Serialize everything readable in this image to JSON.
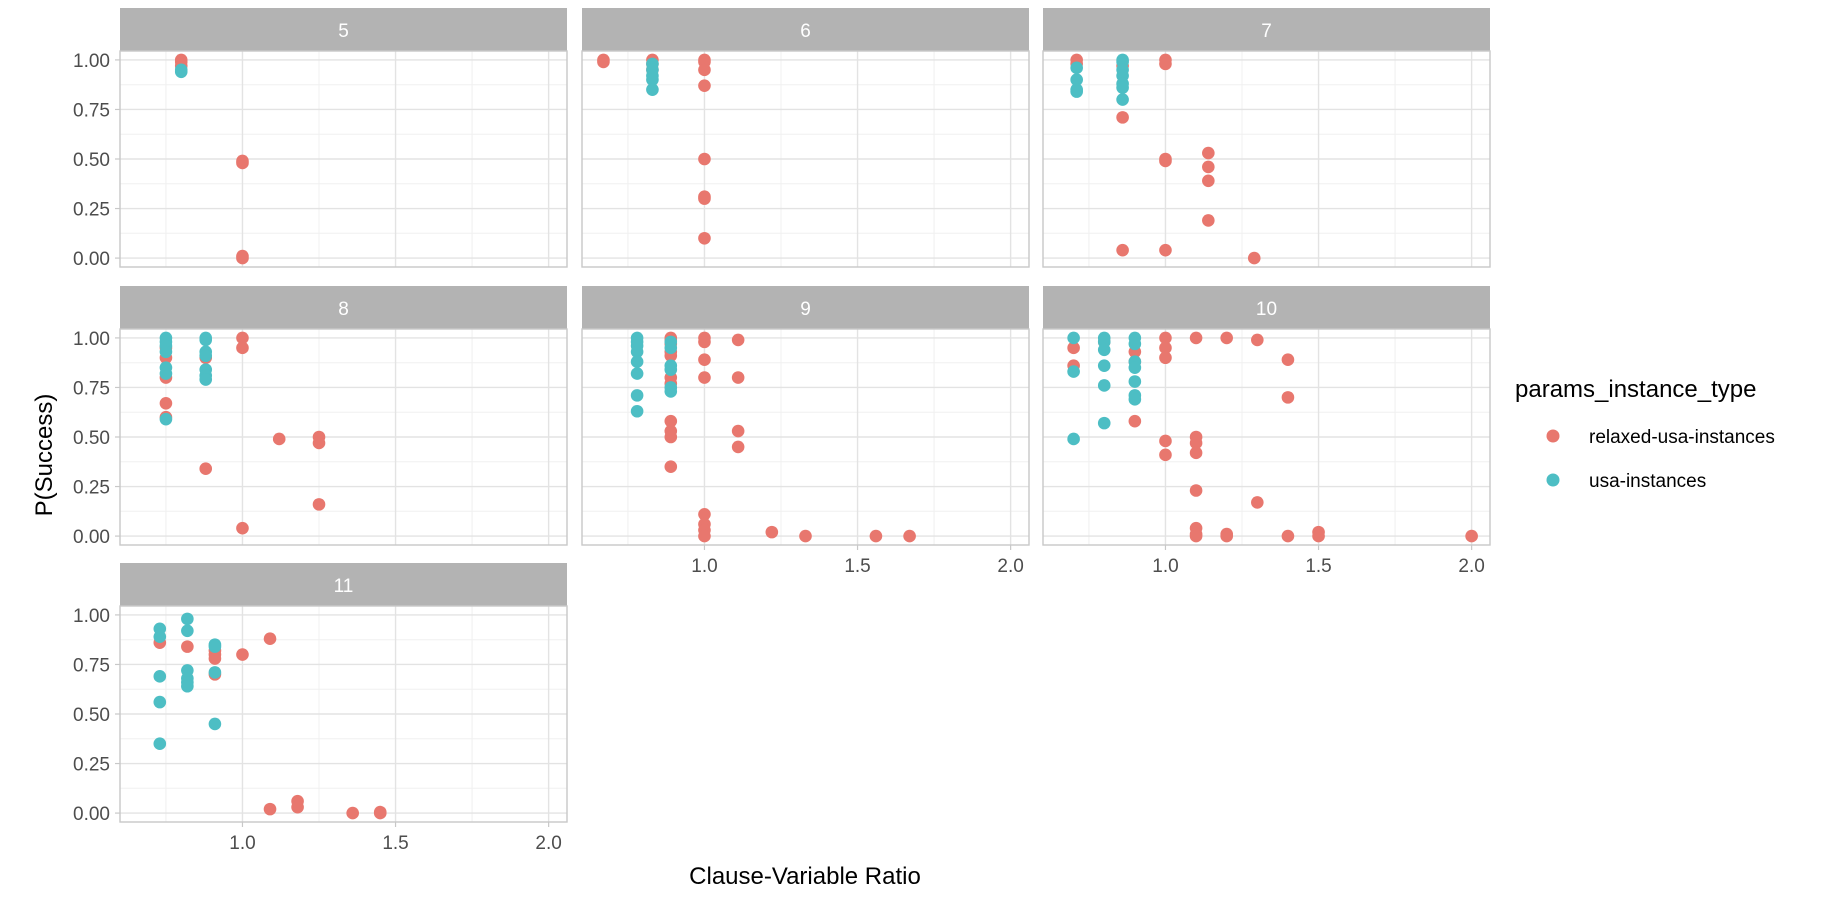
{
  "chart_data": {
    "type": "scatter",
    "facet_by": "panel",
    "xlabel": "Clause-Variable Ratio",
    "ylabel": "P(Success)",
    "x_ticks": [
      "1.0",
      "1.5",
      "2.0"
    ],
    "y_ticks": [
      "0.00",
      "0.25",
      "0.50",
      "0.75",
      "1.00"
    ],
    "xlim": [
      0.6,
      2.06
    ],
    "ylim": [
      -0.045,
      1.045
    ],
    "legend": {
      "title": "params_instance_type",
      "position": "right",
      "entries": [
        {
          "label": "relaxed-usa-instances",
          "color": "#E8776E"
        },
        {
          "label": "usa-instances",
          "color": "#4DBEC4"
        }
      ]
    },
    "panels": [
      {
        "label": "5",
        "series": [
          {
            "name": "relaxed-usa-instances",
            "x": [
              0.8,
              0.8,
              0.8,
              1.0,
              1.0,
              1.0,
              1.0
            ],
            "y": [
              1.0,
              0.99,
              0.97,
              0.49,
              0.48,
              0.01,
              0.0
            ]
          },
          {
            "name": "usa-instances",
            "x": [
              0.8,
              0.8
            ],
            "y": [
              0.95,
              0.94
            ]
          }
        ]
      },
      {
        "label": "6",
        "series": [
          {
            "name": "relaxed-usa-instances",
            "x": [
              0.67,
              0.67,
              0.83,
              0.83,
              0.83,
              1.0,
              1.0,
              1.0,
              1.0,
              1.0,
              1.0,
              1.0,
              1.0
            ],
            "y": [
              1.0,
              0.99,
              1.0,
              0.98,
              0.95,
              1.0,
              0.99,
              0.95,
              0.87,
              0.5,
              0.31,
              0.3,
              0.1
            ]
          },
          {
            "name": "usa-instances",
            "x": [
              0.83,
              0.83,
              0.83,
              0.83,
              0.83
            ],
            "y": [
              0.98,
              0.95,
              0.92,
              0.9,
              0.85
            ]
          }
        ]
      },
      {
        "label": "7",
        "series": [
          {
            "name": "relaxed-usa-instances",
            "x": [
              0.71,
              0.71,
              0.86,
              0.86,
              0.86,
              1.0,
              1.0,
              1.0,
              1.0,
              1.0,
              1.14,
              1.14,
              1.14,
              1.14,
              1.29
            ],
            "y": [
              1.0,
              0.98,
              0.97,
              0.71,
              0.04,
              1.0,
              0.98,
              0.5,
              0.49,
              0.04,
              0.53,
              0.46,
              0.39,
              0.19,
              0.0
            ]
          },
          {
            "name": "usa-instances",
            "x": [
              0.71,
              0.71,
              0.71,
              0.71,
              0.86,
              0.86,
              0.86,
              0.86,
              0.86,
              0.86,
              0.86
            ],
            "y": [
              0.96,
              0.9,
              0.85,
              0.84,
              1.0,
              0.99,
              0.95,
              0.92,
              0.88,
              0.86,
              0.8
            ]
          }
        ]
      },
      {
        "label": "8",
        "series": [
          {
            "name": "relaxed-usa-instances",
            "x": [
              0.75,
              0.75,
              0.75,
              0.75,
              0.75,
              0.88,
              0.88,
              1.0,
              1.0,
              1.0,
              1.12,
              1.25,
              1.25,
              1.25
            ],
            "y": [
              0.95,
              0.9,
              0.8,
              0.67,
              0.6,
              0.9,
              0.34,
              1.0,
              0.95,
              0.04,
              0.49,
              0.5,
              0.47,
              0.16
            ]
          },
          {
            "name": "usa-instances",
            "x": [
              0.75,
              0.75,
              0.75,
              0.75,
              0.75,
              0.75,
              0.75,
              0.88,
              0.88,
              0.88,
              0.88,
              0.88,
              0.88,
              0.88
            ],
            "y": [
              1.0,
              0.98,
              0.96,
              0.93,
              0.85,
              0.82,
              0.59,
              1.0,
              0.99,
              0.93,
              0.91,
              0.84,
              0.81,
              0.79
            ]
          }
        ]
      },
      {
        "label": "9",
        "series": [
          {
            "name": "relaxed-usa-instances",
            "x": [
              0.89,
              0.89,
              0.89,
              0.89,
              0.89,
              0.89,
              0.89,
              0.89,
              0.89,
              0.89,
              0.89,
              1.0,
              1.0,
              1.0,
              1.0,
              1.0,
              1.0,
              1.0,
              1.0,
              1.11,
              1.11,
              1.11,
              1.11,
              1.22,
              1.33,
              1.56,
              1.67
            ],
            "y": [
              1.0,
              0.99,
              0.97,
              0.93,
              0.91,
              0.8,
              0.77,
              0.58,
              0.53,
              0.5,
              0.35,
              1.0,
              0.98,
              0.89,
              0.8,
              0.11,
              0.06,
              0.03,
              0.0,
              0.99,
              0.8,
              0.53,
              0.45,
              0.02,
              0.0,
              0.0,
              0.0
            ]
          },
          {
            "name": "usa-instances",
            "x": [
              0.78,
              0.78,
              0.78,
              0.78,
              0.78,
              0.78,
              0.78,
              0.78,
              0.89,
              0.89,
              0.89,
              0.89,
              0.89,
              0.89
            ],
            "y": [
              1.0,
              0.98,
              0.96,
              0.93,
              0.88,
              0.82,
              0.71,
              0.63,
              0.98,
              0.95,
              0.86,
              0.84,
              0.75,
              0.73
            ]
          }
        ]
      },
      {
        "label": "10",
        "series": [
          {
            "name": "relaxed-usa-instances",
            "x": [
              0.7,
              0.7,
              0.8,
              0.9,
              0.9,
              0.9,
              1.0,
              1.0,
              1.0,
              1.0,
              1.0,
              1.1,
              1.1,
              1.1,
              1.1,
              1.1,
              1.1,
              1.1,
              1.1,
              1.2,
              1.2,
              1.2,
              1.3,
              1.3,
              1.4,
              1.4,
              1.4,
              1.5,
              1.5,
              2.0
            ],
            "y": [
              0.95,
              0.86,
              0.98,
              0.93,
              0.88,
              0.58,
              1.0,
              0.95,
              0.9,
              0.48,
              0.41,
              1.0,
              0.5,
              0.47,
              0.42,
              0.23,
              0.04,
              0.01,
              0.0,
              1.0,
              0.01,
              0.0,
              0.99,
              0.17,
              0.89,
              0.7,
              0.0,
              0.02,
              0.0,
              0.0
            ]
          },
          {
            "name": "usa-instances",
            "x": [
              0.7,
              0.7,
              0.7,
              0.8,
              0.8,
              0.8,
              0.8,
              0.8,
              0.8,
              0.9,
              0.9,
              0.9,
              0.9,
              0.9,
              0.9,
              0.9
            ],
            "y": [
              1.0,
              0.83,
              0.49,
              1.0,
              0.98,
              0.94,
              0.86,
              0.76,
              0.57,
              1.0,
              0.97,
              0.88,
              0.85,
              0.78,
              0.71,
              0.69
            ]
          }
        ]
      },
      {
        "label": "11",
        "series": [
          {
            "name": "relaxed-usa-instances",
            "x": [
              0.73,
              0.82,
              0.91,
              0.91,
              0.91,
              0.91,
              1.0,
              1.09,
              1.09,
              1.18,
              1.18,
              1.36,
              1.45,
              1.45
            ],
            "y": [
              0.86,
              0.84,
              0.82,
              0.8,
              0.78,
              0.7,
              0.8,
              0.88,
              0.02,
              0.06,
              0.03,
              0.0,
              0.005,
              0.0
            ]
          },
          {
            "name": "usa-instances",
            "x": [
              0.73,
              0.73,
              0.73,
              0.73,
              0.73,
              0.82,
              0.82,
              0.82,
              0.82,
              0.82,
              0.82,
              0.91,
              0.91,
              0.91,
              0.91
            ],
            "y": [
              0.93,
              0.89,
              0.69,
              0.56,
              0.35,
              0.98,
              0.92,
              0.72,
              0.68,
              0.66,
              0.64,
              0.85,
              0.84,
              0.71,
              0.45
            ]
          }
        ]
      }
    ]
  }
}
